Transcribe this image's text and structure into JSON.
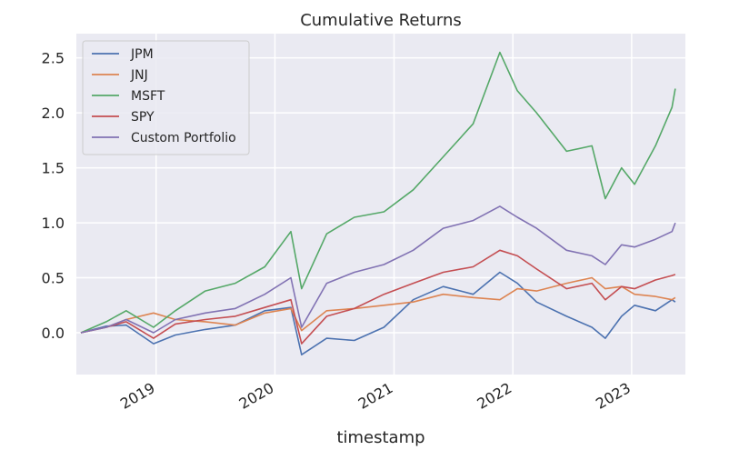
{
  "chart_data": {
    "type": "line",
    "title": "Cumulative Returns",
    "xlabel": "timestamp",
    "ylabel": "",
    "x_ticks": [
      "2019",
      "2020",
      "2021",
      "2022",
      "2023"
    ],
    "y_ticks": [
      "0.0",
      "0.5",
      "1.0",
      "1.5",
      "2.0",
      "2.5"
    ],
    "xlim": [
      "2018-05-01",
      "2023-06-15"
    ],
    "ylim": [
      -0.38,
      2.72
    ],
    "grid": true,
    "legend_position": "top-left",
    "x": [
      "2018-05-15",
      "2018-08-01",
      "2018-10-01",
      "2018-12-24",
      "2019-03-01",
      "2019-06-01",
      "2019-09-01",
      "2019-12-01",
      "2020-02-19",
      "2020-03-23",
      "2020-06-08",
      "2020-09-01",
      "2020-12-01",
      "2021-03-01",
      "2021-06-01",
      "2021-09-01",
      "2021-11-22",
      "2022-01-15",
      "2022-03-15",
      "2022-06-15",
      "2022-09-01",
      "2022-10-12",
      "2022-12-01",
      "2023-01-10",
      "2023-03-15",
      "2023-05-05",
      "2023-05-15"
    ],
    "series": [
      {
        "name": "JPM",
        "color": "#4c72b0",
        "values": [
          0.0,
          0.06,
          0.07,
          -0.1,
          -0.02,
          0.03,
          0.07,
          0.2,
          0.23,
          -0.2,
          -0.05,
          -0.07,
          0.05,
          0.3,
          0.42,
          0.35,
          0.55,
          0.45,
          0.28,
          0.15,
          0.05,
          -0.05,
          0.15,
          0.25,
          0.2,
          0.3,
          0.28
        ]
      },
      {
        "name": "JNJ",
        "color": "#dd8452",
        "values": [
          0.0,
          0.05,
          0.12,
          0.18,
          0.12,
          0.1,
          0.07,
          0.18,
          0.22,
          0.02,
          0.2,
          0.22,
          0.25,
          0.28,
          0.35,
          0.32,
          0.3,
          0.4,
          0.38,
          0.45,
          0.5,
          0.4,
          0.42,
          0.35,
          0.33,
          0.3,
          0.32
        ]
      },
      {
        "name": "MSFT",
        "color": "#55a868",
        "values": [
          0.0,
          0.1,
          0.2,
          0.05,
          0.2,
          0.38,
          0.45,
          0.6,
          0.92,
          0.4,
          0.9,
          1.05,
          1.1,
          1.3,
          1.6,
          1.9,
          2.55,
          2.2,
          2.0,
          1.65,
          1.7,
          1.22,
          1.5,
          1.35,
          1.7,
          2.05,
          2.22
        ]
      },
      {
        "name": "SPY",
        "color": "#c44e52",
        "values": [
          0.0,
          0.05,
          0.1,
          -0.05,
          0.08,
          0.12,
          0.15,
          0.23,
          0.3,
          -0.1,
          0.15,
          0.22,
          0.35,
          0.45,
          0.55,
          0.6,
          0.75,
          0.7,
          0.58,
          0.4,
          0.45,
          0.3,
          0.42,
          0.4,
          0.48,
          0.52,
          0.53
        ]
      },
      {
        "name": "Custom Portfolio",
        "color": "#8172b3",
        "values": [
          0.0,
          0.05,
          0.12,
          0.0,
          0.12,
          0.18,
          0.22,
          0.35,
          0.5,
          0.05,
          0.45,
          0.55,
          0.62,
          0.75,
          0.95,
          1.02,
          1.15,
          1.05,
          0.95,
          0.75,
          0.7,
          0.62,
          0.8,
          0.78,
          0.85,
          0.92,
          1.0
        ]
      }
    ]
  }
}
